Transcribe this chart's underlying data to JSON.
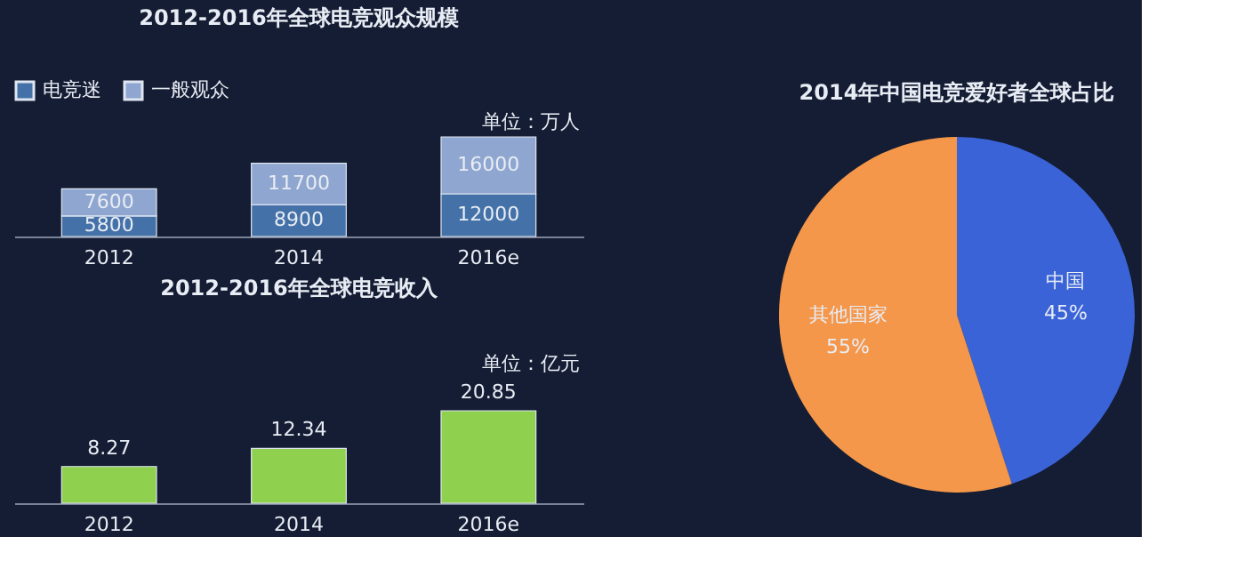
{
  "chart_data": [
    {
      "type": "bar",
      "title": "2012-2016年全球电竞观众规模",
      "categories": [
        "2012",
        "2014",
        "2016e"
      ],
      "stacked": true,
      "data_labels": true,
      "legend": "top",
      "annotations": [
        "单位：万人"
      ],
      "series": [
        {
          "name": "电竞迷",
          "color": "#4472a8",
          "values": [
            5800,
            8900,
            12000
          ]
        },
        {
          "name": "一般观众",
          "color": "#8fa7d0",
          "values": [
            7600,
            11700,
            16000
          ]
        }
      ]
    },
    {
      "type": "bar",
      "title": "2012-2016年全球电竞收入",
      "categories": [
        "2012",
        "2014",
        "2016e"
      ],
      "data_labels": true,
      "annotations": [
        "单位：亿元"
      ],
      "series": [
        {
          "color": "#8fd14f",
          "values": [
            8.27,
            12.34,
            20.85
          ]
        }
      ]
    },
    {
      "type": "pie",
      "title": "2014年中国电竞爱好者全球占比",
      "categories": [
        "中国",
        "其他国家"
      ],
      "values": [
        45,
        55
      ],
      "colors": [
        "#3a63d8",
        "#f5974a"
      ],
      "value_labels": [
        "45%",
        "55%"
      ]
    }
  ]
}
